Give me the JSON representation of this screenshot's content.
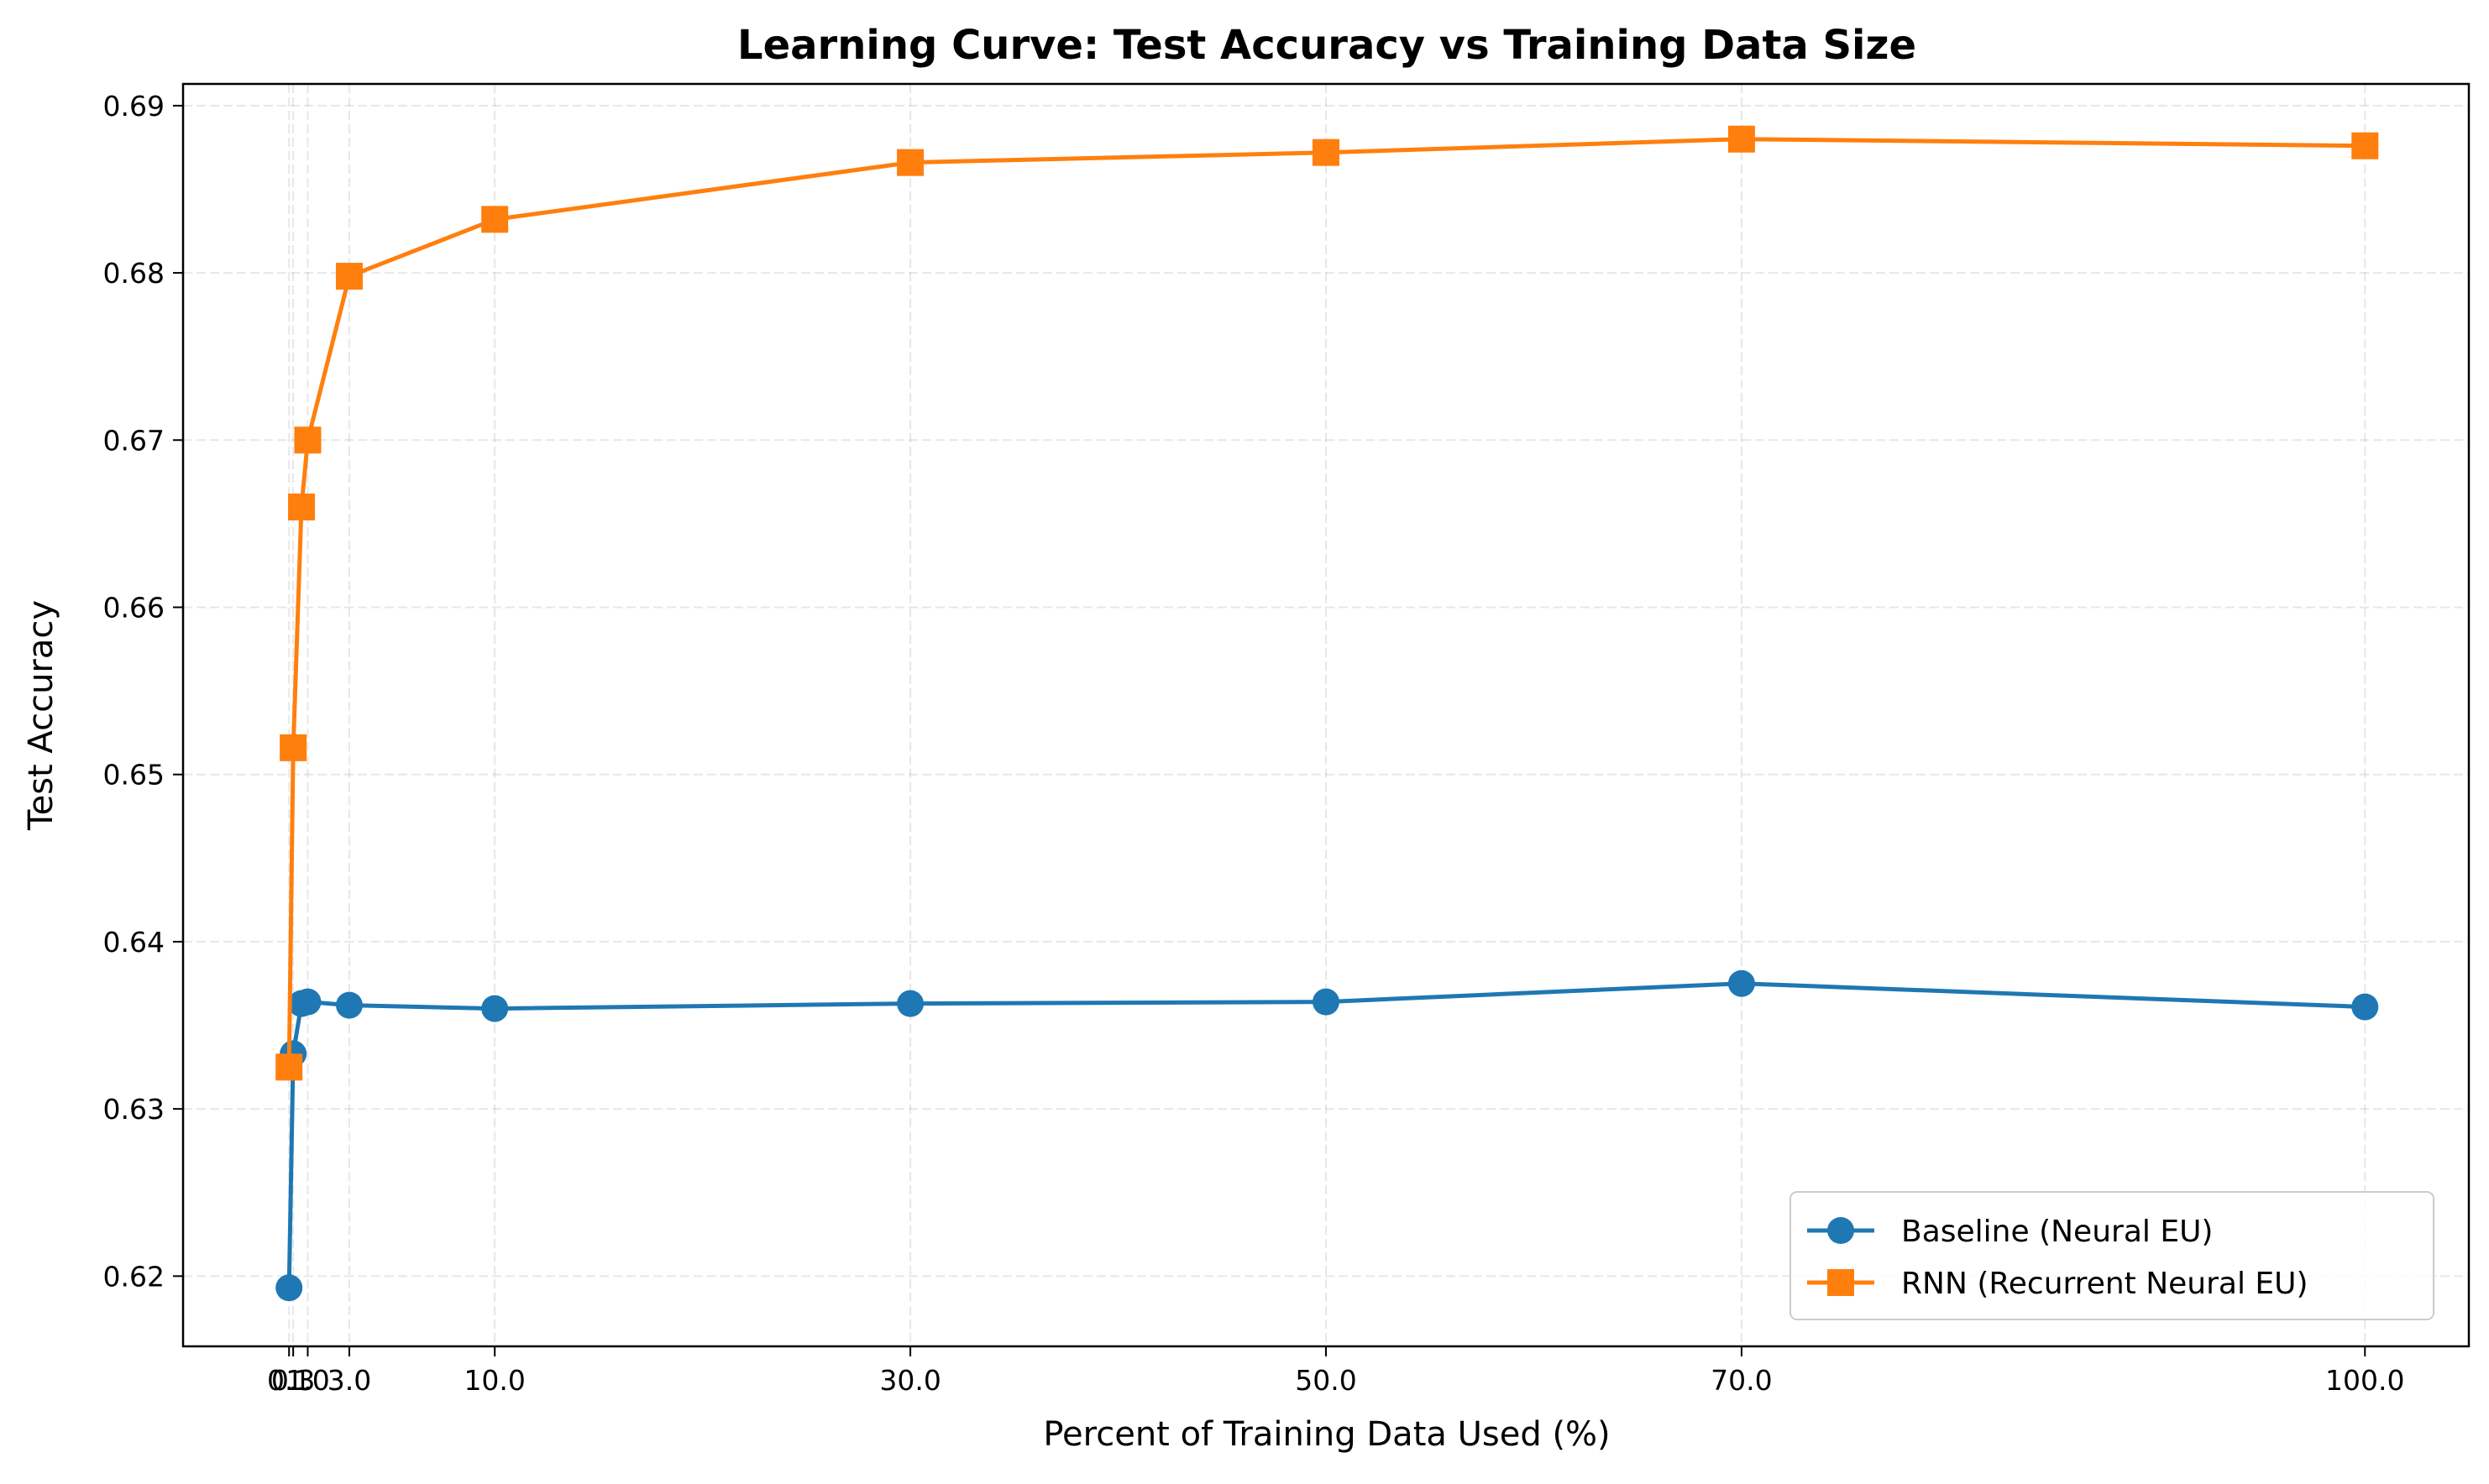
{
  "chart_data": {
    "type": "line",
    "title": "Learning Curve: Test Accuracy vs Training Data Size",
    "xlabel": "Percent of Training Data Used (%)",
    "ylabel": "Test Accuracy",
    "xlim": [
      -5,
      105
    ],
    "ylim": [
      0.6158,
      0.6913
    ],
    "x": [
      0.1,
      0.3,
      1.0,
      3.0,
      10.0,
      30.0,
      50.0,
      70.0,
      100.0
    ],
    "x_ticks": [
      0.1,
      0.3,
      1.0,
      3.0,
      10.0,
      30.0,
      50.0,
      70.0,
      100.0
    ],
    "x_tick_labels": [
      "0.1",
      "0.3",
      "1.0",
      "3.0",
      "10.0",
      "30.0",
      "50.0",
      "70.0",
      "100.0"
    ],
    "y_ticks": [
      0.62,
      0.63,
      0.64,
      0.65,
      0.66,
      0.67,
      0.68,
      0.69
    ],
    "y_tick_labels": [
      "0.62",
      "0.63",
      "0.64",
      "0.65",
      "0.66",
      "0.67",
      "0.68",
      "0.69"
    ],
    "grid": true,
    "legend_position": "lower-right",
    "series": [
      {
        "name": "Baseline (Neural EU)",
        "color": "#1f77b4",
        "marker": "circle",
        "x": [
          0.1,
          0.3,
          0.7,
          1.0,
          3.0,
          10.0,
          30.0,
          50.0,
          70.0,
          100.0
        ],
        "values": [
          0.6193,
          0.6333,
          0.6363,
          0.6364,
          0.6362,
          0.636,
          0.6363,
          0.6364,
          0.6375,
          0.6361
        ]
      },
      {
        "name": "RNN (Recurrent Neural EU)",
        "color": "#ff7f0e",
        "marker": "square",
        "x": [
          0.1,
          0.3,
          0.7,
          1.0,
          3.0,
          10.0,
          30.0,
          50.0,
          70.0,
          100.0
        ],
        "values": [
          0.6325,
          0.6516,
          0.666,
          0.67,
          0.6798,
          0.6832,
          0.6866,
          0.6872,
          0.688,
          0.6876
        ]
      }
    ]
  }
}
